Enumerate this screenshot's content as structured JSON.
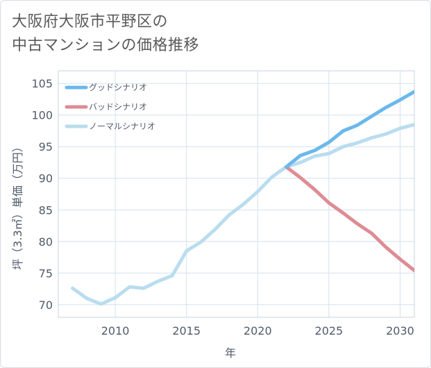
{
  "title_lines": [
    "大阪府大阪市平野区の",
    "中古マンションの価格推移"
  ],
  "chart_data": {
    "type": "line",
    "xlabel": "年",
    "ylabel": "坪（3.3㎡）単価（万円）",
    "xlim": [
      2006,
      2031
    ],
    "ylim": [
      68,
      107
    ],
    "xticks": [
      2010,
      2015,
      2020,
      2025,
      2030
    ],
    "yticks": [
      70,
      75,
      80,
      85,
      90,
      95,
      100,
      105
    ],
    "grid": true,
    "legend_position": "top-left",
    "series": [
      {
        "name": "グッドシナリオ",
        "color": "#6bb8ec",
        "x": [
          2022,
          2023,
          2024,
          2025,
          2026,
          2027,
          2028,
          2029,
          2030,
          2031
        ],
        "y": [
          91.8,
          93.6,
          94.4,
          95.7,
          97.5,
          98.4,
          99.8,
          101.2,
          102.4,
          103.7
        ]
      },
      {
        "name": "バッドシナリオ",
        "color": "#de8c95",
        "x": [
          2022,
          2023,
          2024,
          2025,
          2026,
          2027,
          2028,
          2029,
          2030,
          2031
        ],
        "y": [
          91.8,
          90.1,
          88.2,
          86.1,
          84.5,
          82.8,
          81.3,
          79.1,
          77.2,
          75.4
        ]
      },
      {
        "name": "ノーマルシナリオ",
        "color": "#b9ddef",
        "x": [
          2007,
          2008,
          2009,
          2010,
          2011,
          2012,
          2013,
          2014,
          2015,
          2016,
          2017,
          2018,
          2019,
          2020,
          2021,
          2022,
          2023,
          2024,
          2025,
          2026,
          2027,
          2028,
          2029,
          2030,
          2031
        ],
        "y": [
          72.6,
          71.0,
          70.1,
          71.1,
          72.8,
          72.6,
          73.7,
          74.6,
          78.5,
          79.9,
          81.9,
          84.2,
          85.9,
          87.9,
          90.2,
          91.8,
          92.5,
          93.5,
          93.9,
          95.0,
          95.6,
          96.4,
          97.0,
          97.9,
          98.5
        ]
      }
    ]
  }
}
